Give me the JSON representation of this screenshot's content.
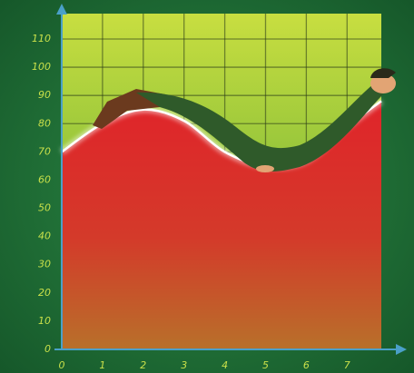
{
  "chart_data": {
    "type": "area",
    "x": [
      0,
      1,
      2,
      3,
      4,
      5,
      6,
      7,
      7.84
    ],
    "values": [
      70,
      80,
      85,
      81,
      70,
      65,
      67,
      79,
      88
    ],
    "color": "#e0242a",
    "xlim": [
      0,
      7.84
    ],
    "xticks": [
      0,
      1,
      2,
      3,
      4,
      5,
      6,
      7
    ],
    "ylim": [
      0,
      119
    ],
    "yticks": [
      0,
      10,
      20,
      30,
      40,
      50,
      60,
      70,
      80,
      90,
      100,
      110
    ],
    "grid": true
  }
}
